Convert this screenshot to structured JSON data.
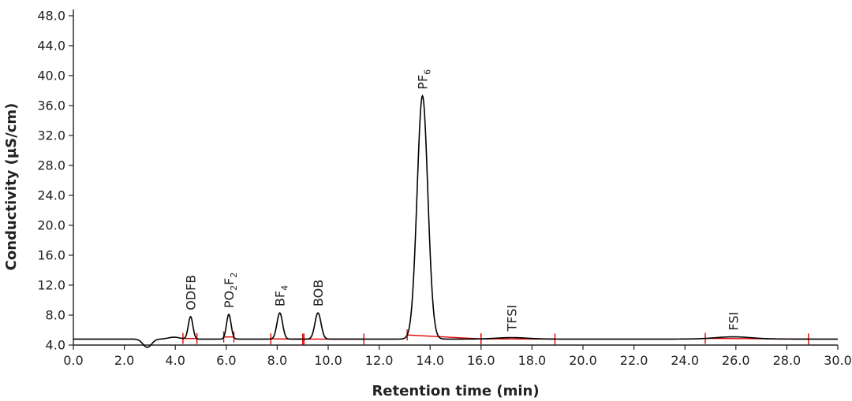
{
  "chart_data": {
    "type": "line",
    "title": "",
    "xlabel": "Retention time (min)",
    "ylabel": "Conductivity (µS/cm)",
    "xlim": [
      0.0,
      30.0
    ],
    "ylim": [
      4.0,
      48.0
    ],
    "x_ticks": [
      "0.0",
      "2.0",
      "4.0",
      "6.0",
      "8.0",
      "10.0",
      "12.0",
      "14.0",
      "16.0",
      "18.0",
      "20.0",
      "22.0",
      "24.0",
      "26.0",
      "28.0",
      "30.0"
    ],
    "y_ticks": [
      "4.0",
      "8.0",
      "12.0",
      "16.0",
      "20.0",
      "24.0",
      "28.0",
      "32.0",
      "36.0",
      "40.0",
      "44.0",
      "48.0"
    ],
    "grid": false,
    "baseline": 4.8,
    "series_color": "#000000",
    "integration_color": "#e00000",
    "dip": {
      "x": 2.9,
      "y": 3.7,
      "width": 0.17
    },
    "bump": {
      "x": 3.95,
      "y": 5.05,
      "width": 0.22
    },
    "peaks": [
      {
        "label": "ODFB",
        "label_main": "ODFB",
        "label_sub": "",
        "label_tail": "",
        "x": 4.6,
        "y": 7.8,
        "width": 0.09
      },
      {
        "label": "PO2F2",
        "label_main": "PO",
        "label_sub": "2",
        "label_tail": "F",
        "label_sub2": "2",
        "x": 6.1,
        "y": 8.1,
        "width": 0.09
      },
      {
        "label": "BF4",
        "label_main": "BF",
        "label_sub": "4",
        "label_tail": "",
        "x": 8.1,
        "y": 8.3,
        "width": 0.11
      },
      {
        "label": "BOB",
        "label_main": "BOB",
        "label_sub": "",
        "label_tail": "",
        "x": 9.6,
        "y": 8.3,
        "width": 0.12
      },
      {
        "label": "PF6",
        "label_main": "PF",
        "label_sub": "6",
        "label_tail": "",
        "x": 13.7,
        "y": 37.3,
        "width": 0.21
      },
      {
        "label": "TFSI",
        "label_main": "TFSI",
        "label_sub": "",
        "label_tail": "",
        "x": 17.2,
        "y": 5.0,
        "width": 0.6
      },
      {
        "label": "FSI",
        "label_main": "FSI",
        "label_sub": "",
        "label_tail": "",
        "x": 25.9,
        "y": 5.1,
        "width": 0.7
      }
    ],
    "integration_segments": [
      {
        "start": 4.3,
        "end": 4.85
      },
      {
        "start": 5.9,
        "end": 6.3
      },
      {
        "start": 7.75,
        "end": 9.05
      },
      {
        "start": 9.0,
        "end": 11.4
      },
      {
        "start": 13.1,
        "end": 16.0
      },
      {
        "start": 16.0,
        "end": 18.9
      },
      {
        "start": 24.8,
        "end": 28.85
      }
    ]
  }
}
